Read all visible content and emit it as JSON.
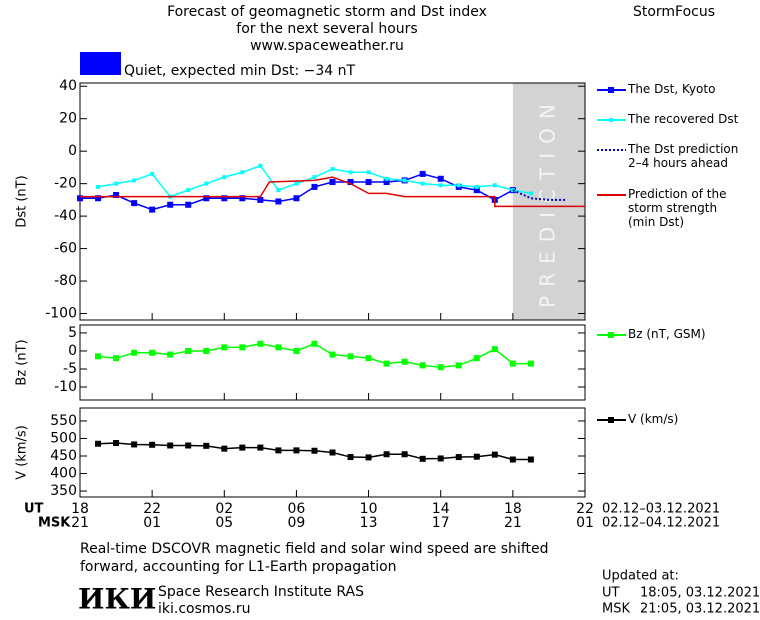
{
  "header": {
    "title": [
      "Forecast of geomagnetic storm and Dst index",
      "for the next several hours",
      "www.spaceweather.ru"
    ],
    "brand": "StormFocus"
  },
  "status": {
    "text": "Quiet, expected min Dst: −34 nT",
    "color": "#0000ff"
  },
  "time_axis": {
    "xlim": [
      0,
      28
    ],
    "ut": {
      "label": "UT",
      "range": "02.12–03.12.2021",
      "ticks": [
        {
          "value": 0,
          "label": "18"
        },
        {
          "value": 4,
          "label": "22"
        },
        {
          "value": 8,
          "label": "02"
        },
        {
          "value": 12,
          "label": "06"
        },
        {
          "value": 16,
          "label": "10"
        },
        {
          "value": 20,
          "label": "14"
        },
        {
          "value": 24,
          "label": "18"
        },
        {
          "value": 28,
          "label": "22"
        }
      ]
    },
    "msk": {
      "label": "MSK",
      "range": "02.12–04.12.2021",
      "ticks": [
        {
          "value": 0,
          "label": "21"
        },
        {
          "value": 4,
          "label": "01"
        },
        {
          "value": 8,
          "label": "05"
        },
        {
          "value": 12,
          "label": "09"
        },
        {
          "value": 16,
          "label": "13"
        },
        {
          "value": 20,
          "label": "17"
        },
        {
          "value": 24,
          "label": "21"
        },
        {
          "value": 28,
          "label": "01"
        }
      ]
    }
  },
  "chart_data": [
    {
      "type": "line",
      "y_label": "Dst (nT)",
      "ylim": [
        -104,
        42
      ],
      "yticks": [
        40,
        20,
        0,
        -20,
        -40,
        -60,
        -80,
        -100
      ],
      "prediction": {
        "label": "PREDICTION",
        "span": [
          24,
          28
        ],
        "color": "#d3d3d3"
      },
      "series": [
        {
          "name": "The Dst, Kyoto",
          "color": "#0000ff",
          "marker": "square",
          "x": [
            0,
            1,
            2,
            3,
            4,
            5,
            6,
            7,
            8,
            9,
            10,
            11,
            12,
            13,
            14,
            15,
            16,
            17,
            18,
            19,
            20,
            21,
            22,
            23,
            24
          ],
          "values": [
            -29,
            -29,
            -27,
            -32,
            -36,
            -33,
            -33,
            -29,
            -29,
            -29,
            -30,
            -31,
            -29,
            -22,
            -19,
            -19,
            -19,
            -19,
            -18,
            -14,
            -17,
            -22,
            -24,
            -30,
            -24
          ]
        },
        {
          "name": "The recovered Dst",
          "color": "#00ffff",
          "marker": "small-square",
          "x": [
            1,
            2,
            3,
            4,
            5,
            6,
            7,
            8,
            9,
            10,
            11,
            12,
            13,
            14,
            15,
            16,
            17,
            18,
            19,
            20,
            21,
            22,
            23,
            24,
            25
          ],
          "values": [
            -22,
            -20,
            -18,
            -14,
            -28,
            -24,
            -20,
            -16,
            -13,
            -9,
            -24,
            -20,
            -16,
            -11,
            -13,
            -13,
            -17,
            -18,
            -20,
            -21,
            -21,
            -22,
            -21,
            -24,
            -26
          ]
        },
        {
          "name": "The Dst prediction\n2–4 hours ahead",
          "color": "#0000cc",
          "dash": "dotted",
          "x": [
            24,
            25,
            26,
            27
          ],
          "values": [
            -24,
            -29,
            -30,
            -30
          ]
        },
        {
          "name": "Prediction of the\nstorm strength\n(min Dst)",
          "color": "#dd0000",
          "x": [
            0,
            10,
            10.5,
            13,
            14,
            15,
            16,
            17,
            18,
            23,
            23,
            28
          ],
          "values": [
            -28,
            -28,
            -19,
            -18,
            -16,
            -20,
            -26,
            -26,
            -28,
            -28,
            -34,
            -34
          ]
        }
      ]
    },
    {
      "type": "line",
      "y_label": "Bz (nT)",
      "ylim": [
        -13.6,
        7.2
      ],
      "yticks": [
        5,
        0,
        -5,
        -10
      ],
      "series": [
        {
          "name": "Bz (nT, GSM)",
          "color": "#00ff00",
          "marker": "square",
          "x": [
            1,
            2,
            3,
            4,
            5,
            6,
            7,
            8,
            9,
            10,
            11,
            12,
            13,
            14,
            15,
            16,
            17,
            18,
            19,
            20,
            21,
            22,
            23,
            24,
            25
          ],
          "values": [
            -1.5,
            -2,
            -0.5,
            -0.5,
            -1,
            0,
            0,
            1,
            1,
            2,
            1,
            0,
            2,
            -1,
            -1.5,
            -2,
            -3.5,
            -3,
            -4,
            -4.5,
            -4,
            -2,
            0.5,
            -3.5,
            -3.5
          ]
        }
      ]
    },
    {
      "type": "line",
      "y_label": "V (km/s)",
      "ylim": [
        333,
        587
      ],
      "yticks": [
        350,
        400,
        450,
        500,
        550
      ],
      "series": [
        {
          "name": "V (km/s)",
          "color": "#000000",
          "marker": "square",
          "x": [
            1,
            2,
            3,
            4,
            5,
            6,
            7,
            8,
            9,
            10,
            11,
            12,
            13,
            14,
            15,
            16,
            17,
            18,
            19,
            20,
            21,
            22,
            23,
            24,
            25
          ],
          "values": [
            485,
            487,
            483,
            482,
            480,
            480,
            479,
            471,
            474,
            474,
            466,
            466,
            465,
            460,
            447,
            446,
            455,
            455,
            442,
            443,
            447,
            448,
            454,
            440,
            440
          ]
        }
      ]
    }
  ],
  "footer": {
    "note": "Real-time DSCOVR magnetic field and solar wind speed are shifted\nforward, accounting for L1-Earth propagation",
    "logo": "ИКИ",
    "institute": "Space Research Institute RAS",
    "site": "iki.cosmos.ru",
    "updated": "Updated at:",
    "ut_label": "UT",
    "ut_time": "18:05, 03.12.2021",
    "msk_label": "MSK",
    "msk_time": "21:05, 03.12.2021"
  }
}
